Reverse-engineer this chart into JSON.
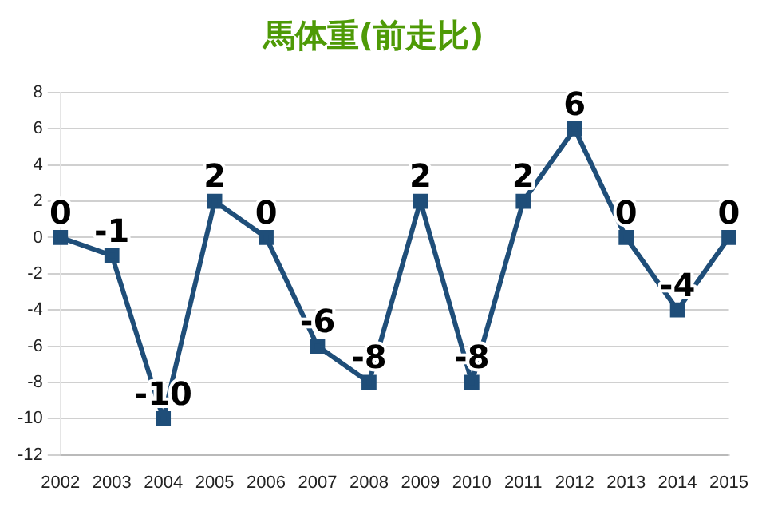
{
  "chart_data": {
    "type": "line",
    "title": "馬体重(前走比)",
    "categories": [
      "2002",
      "2003",
      "2004",
      "2005",
      "2006",
      "2007",
      "2008",
      "2009",
      "2010",
      "2011",
      "2012",
      "2013",
      "2014",
      "2015"
    ],
    "series": [
      {
        "color": "#1f4e79",
        "values": [
          0,
          -1,
          -10,
          2,
          0,
          -6,
          -8,
          2,
          -8,
          2,
          6,
          0,
          -4,
          0
        ]
      }
    ],
    "ylim": [
      -12,
      8
    ],
    "yticks": [
      -12,
      -10,
      -8,
      -6,
      -4,
      -2,
      0,
      2,
      4,
      6,
      8
    ],
    "grid": "y",
    "marker": "square",
    "line_style": "solid",
    "data_labels": true,
    "legend": false
  }
}
